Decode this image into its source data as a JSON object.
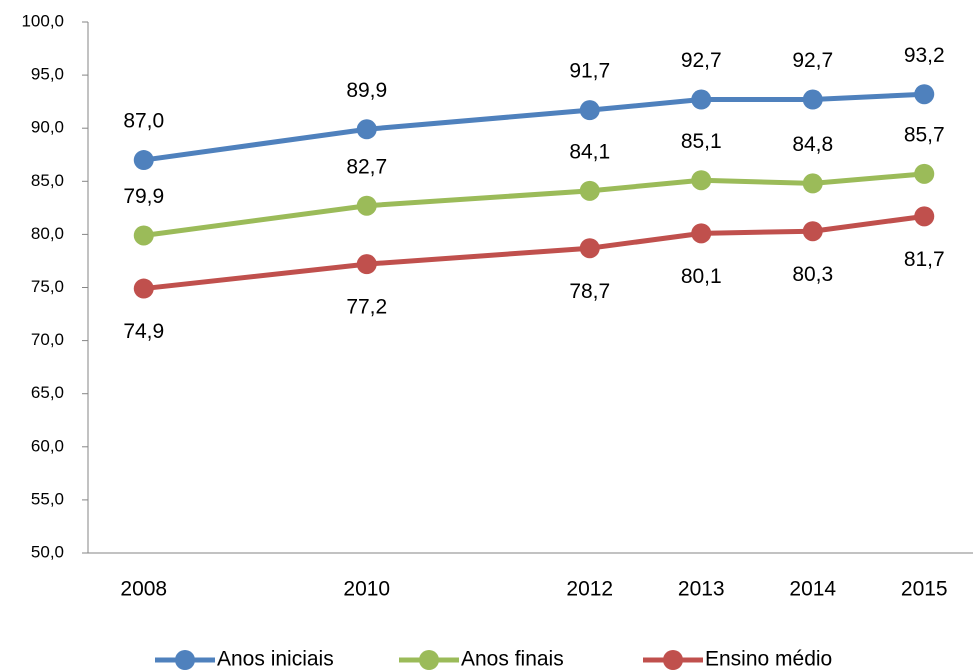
{
  "chart_data": {
    "type": "line",
    "x": [
      2008,
      2010,
      2012,
      2013,
      2014,
      2015
    ],
    "xlim": [
      2007.5,
      2015.5
    ],
    "xticks": [
      2008,
      2010,
      2012,
      2013,
      2014,
      2015
    ],
    "ylim": [
      50,
      100
    ],
    "yticks": [
      {
        "value": 50,
        "label": "50,0"
      },
      {
        "value": 55,
        "label": "55,0"
      },
      {
        "value": 60,
        "label": "60,0"
      },
      {
        "value": 65,
        "label": "65,0"
      },
      {
        "value": 70,
        "label": "70,0"
      },
      {
        "value": 75,
        "label": "75,0"
      },
      {
        "value": 80,
        "label": "80,0"
      },
      {
        "value": 85,
        "label": "85,0"
      },
      {
        "value": 90,
        "label": "90,0"
      },
      {
        "value": 95,
        "label": "95,0"
      },
      {
        "value": 100,
        "label": "100,0"
      }
    ],
    "grid": false,
    "legend": "bottom",
    "series": [
      {
        "name": "Anos iniciais",
        "color": "#4f81bd",
        "values": [
          87.0,
          89.9,
          91.7,
          92.7,
          92.7,
          93.2
        ],
        "value_labels": [
          "87,0",
          "89,9",
          "91,7",
          "92,7",
          "92,7",
          "93,2"
        ]
      },
      {
        "name": "Anos finais",
        "color": "#9bbb59",
        "values": [
          79.9,
          82.7,
          84.1,
          85.1,
          84.8,
          85.7
        ],
        "value_labels": [
          "79,9",
          "82,7",
          "84,1",
          "85,1",
          "84,8",
          "85,7"
        ]
      },
      {
        "name": "Ensino médio",
        "color": "#c0504d",
        "values": [
          74.9,
          77.2,
          78.7,
          80.1,
          80.3,
          81.7
        ],
        "value_labels": [
          "74,9",
          "77,2",
          "78,7",
          "80,1",
          "80,3",
          "81,7"
        ]
      }
    ]
  }
}
